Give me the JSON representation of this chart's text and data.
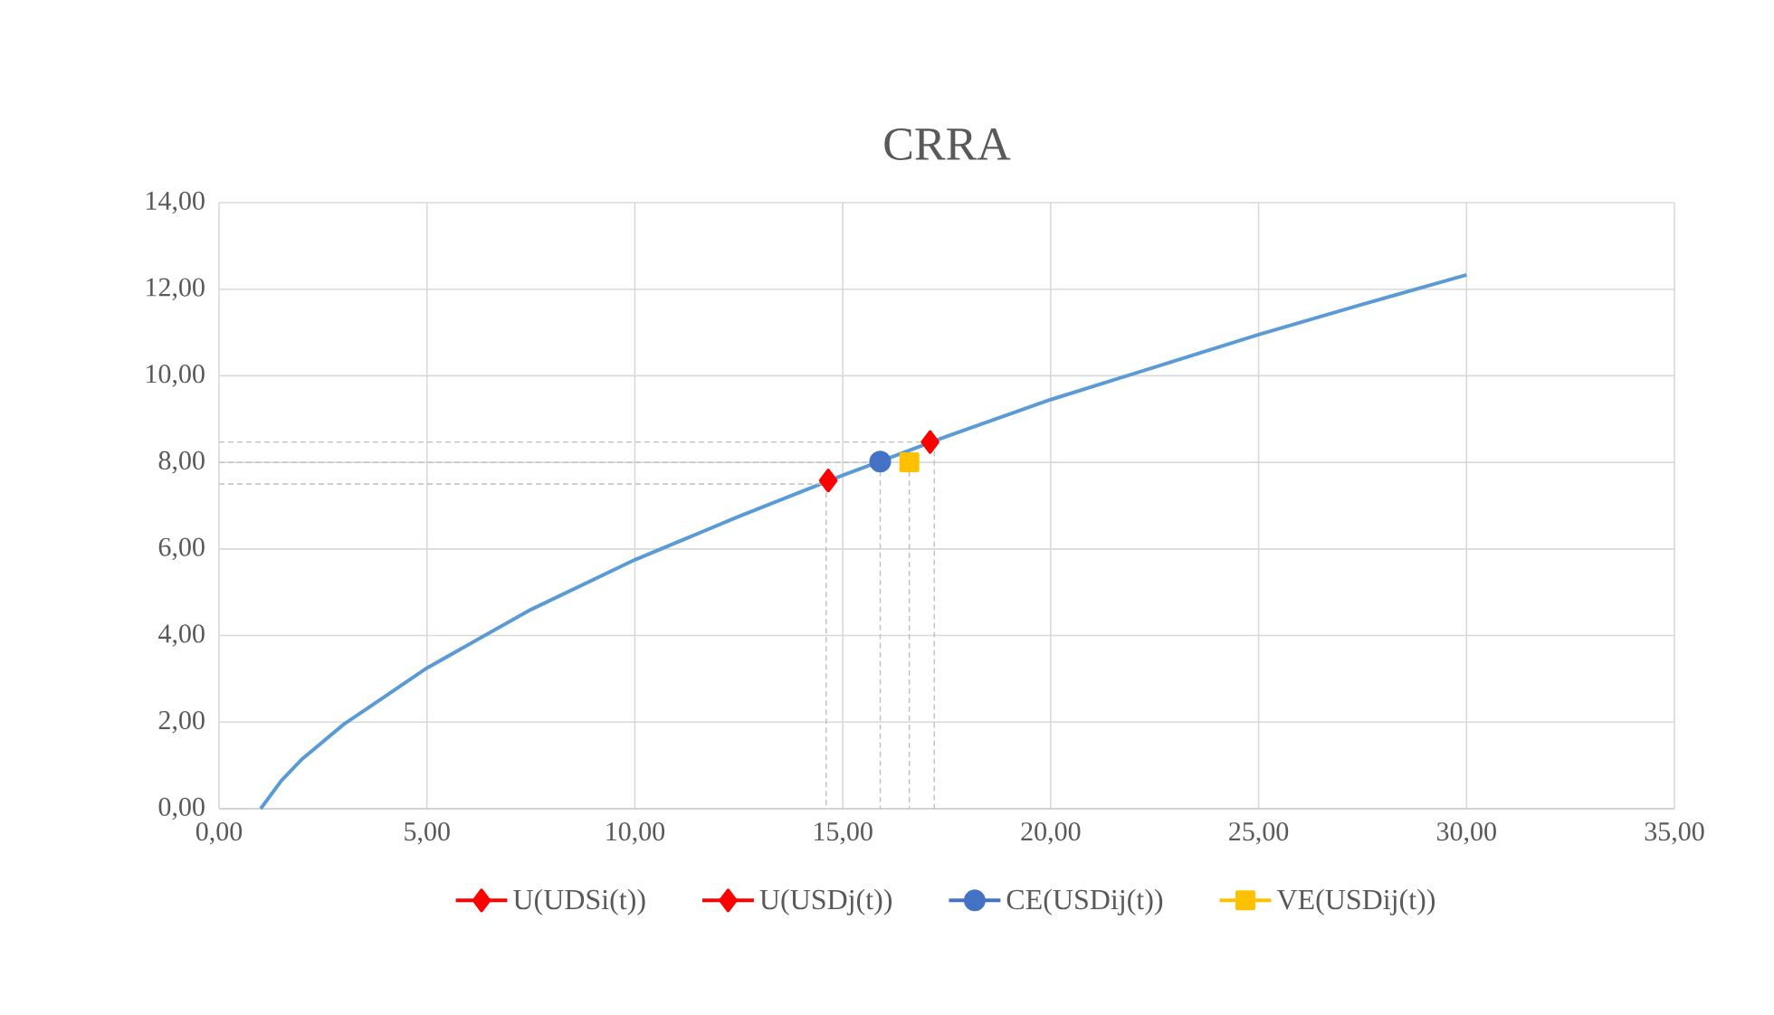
{
  "chart_data": {
    "type": "line",
    "title": "CRRA",
    "xlim": [
      0,
      35
    ],
    "ylim": [
      0,
      14
    ],
    "xticks": [
      {
        "value": 0,
        "label": "0,00"
      },
      {
        "value": 5,
        "label": "5,00"
      },
      {
        "value": 10,
        "label": "10,00"
      },
      {
        "value": 15,
        "label": "15,00"
      },
      {
        "value": 20,
        "label": "20,00"
      },
      {
        "value": 25,
        "label": "25,00"
      },
      {
        "value": 30,
        "label": "30,00"
      },
      {
        "value": 35,
        "label": "35,00"
      }
    ],
    "yticks": [
      {
        "value": 0,
        "label": "0,00"
      },
      {
        "value": 2,
        "label": "2,00"
      },
      {
        "value": 4,
        "label": "4,00"
      },
      {
        "value": 6,
        "label": "6,00"
      },
      {
        "value": 8,
        "label": "8,00"
      },
      {
        "value": 10,
        "label": "10,00"
      },
      {
        "value": 12,
        "label": "12,00"
      },
      {
        "value": 14,
        "label": "14,00"
      }
    ],
    "grid": true,
    "legend": "bottom",
    "series": [
      {
        "color": "#5b9bd5",
        "marker": "none",
        "line_style": "solid",
        "x": [
          1,
          1.5,
          2,
          3,
          4,
          5,
          7.5,
          10,
          12.5,
          15,
          17.5,
          20,
          22.5,
          25,
          27.5,
          30
        ],
        "values": [
          0,
          0.65,
          1.15,
          1.95,
          2.6,
          3.25,
          4.6,
          5.75,
          6.75,
          7.7,
          8.6,
          9.45,
          10.2,
          10.95,
          11.65,
          12.33
        ]
      },
      {
        "color": "#bfbfbf",
        "marker": "none",
        "line_style": "dashed",
        "x": [
          0,
          14.6,
          14.6
        ],
        "values": [
          7.5,
          7.5,
          0
        ]
      },
      {
        "color": "#bfbfbf",
        "marker": "none",
        "line_style": "dashed",
        "x": [
          0,
          15.9,
          15.9
        ],
        "values": [
          8.0,
          8.0,
          0
        ]
      },
      {
        "color": "#bfbfbf",
        "marker": "none",
        "line_style": "dashed",
        "x": [
          16.6,
          16.6
        ],
        "values": [
          8.0,
          0
        ]
      },
      {
        "color": "#bfbfbf",
        "marker": "none",
        "line_style": "dashed",
        "x": [
          0,
          17.2,
          17.2
        ],
        "values": [
          8.47,
          8.47,
          0
        ]
      },
      {
        "name": "U(UDSi(t))",
        "color": "#ff0000",
        "marker": "diamond",
        "x": [
          14.65
        ],
        "values": [
          7.58
        ]
      },
      {
        "name": "U(USDj(t))",
        "color": "#ff0000",
        "marker": "diamond",
        "x": [
          17.1
        ],
        "values": [
          8.47
        ]
      },
      {
        "name": "CE(USDij(t))",
        "color": "#4472c4",
        "marker": "circle",
        "x": [
          15.9
        ],
        "values": [
          8.02
        ]
      },
      {
        "name": "VE(USDij(t))",
        "color": "#ffc000",
        "marker": "square",
        "x": [
          16.6
        ],
        "values": [
          8.0
        ]
      }
    ]
  }
}
